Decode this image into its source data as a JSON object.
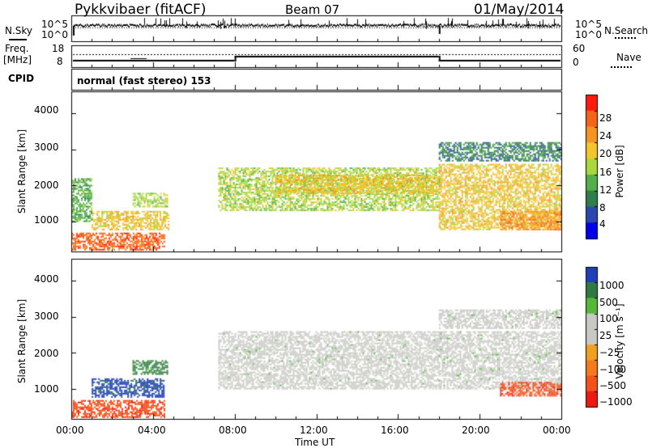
{
  "header": {
    "station": "Pykkvibaer (fitACF)",
    "beam": "Beam 07",
    "date": "01/May/2014"
  },
  "panels": {
    "nsky": {
      "left_label": "N.Sky",
      "right_label": "N.Search",
      "left_ticks": [
        "10^5",
        "10^0"
      ],
      "right_ticks": [
        "10^5",
        "10^0"
      ]
    },
    "freq": {
      "left_label_1": "Freq.",
      "left_label_2": "[MHz]",
      "left_ticks": [
        "18",
        "8"
      ],
      "right_label": "Nave",
      "right_ticks": [
        "60",
        "0"
      ]
    },
    "cpid": {
      "label": "CPID",
      "value": "normal (fast stereo) 153"
    }
  },
  "chart_data": [
    {
      "type": "heatmap",
      "name": "Power",
      "ylabel": "Slant Range [km]",
      "xlabel": "Time UT",
      "xlim_hours": [
        0,
        24
      ],
      "ylim_km": [
        180,
        4600
      ],
      "x_tick_labels": [
        "00:00",
        "04:00",
        "08:00",
        "12:00",
        "16:00",
        "20:00",
        "00:00"
      ],
      "y_tick_labels": [
        "1000",
        "2000",
        "3000",
        "4000"
      ],
      "colorbar": {
        "label": "Power [dB]",
        "tick_labels": [
          "28",
          "24",
          "20",
          "16",
          "12",
          "8",
          "4"
        ],
        "colors": [
          "#0000ee",
          "#2a48b0",
          "#2f7f4a",
          "#52b04a",
          "#a8d83c",
          "#f3c52c",
          "#f59423",
          "#f66418",
          "#ff1a0c"
        ]
      },
      "echo_regions": [
        {
          "t": [
            0.0,
            4.6
          ],
          "range": [
            250,
            700
          ],
          "value": "28"
        },
        {
          "t": [
            1.0,
            4.8
          ],
          "range": [
            800,
            1300
          ],
          "value": "20"
        },
        {
          "t": [
            0.0,
            1.0
          ],
          "range": [
            1000,
            2200
          ],
          "value": "12"
        },
        {
          "t": [
            3.0,
            4.7
          ],
          "range": [
            1400,
            1800
          ],
          "value": "16"
        },
        {
          "t": [
            7.2,
            18.0
          ],
          "range": [
            1300,
            2500
          ],
          "value": "16"
        },
        {
          "t": [
            10.0,
            18.0
          ],
          "range": [
            1800,
            2300
          ],
          "value": "20"
        },
        {
          "t": [
            18.0,
            24.0
          ],
          "range": [
            800,
            2600
          ],
          "value": "20"
        },
        {
          "t": [
            21.0,
            24.0
          ],
          "range": [
            800,
            1300
          ],
          "value": "24"
        },
        {
          "t": [
            18.0,
            24.0
          ],
          "range": [
            2700,
            3200
          ],
          "value": "8"
        }
      ]
    },
    {
      "type": "heatmap",
      "name": "Velocity",
      "ylabel": "Slant Range [km]",
      "xlabel": "Time UT",
      "xlim_hours": [
        0,
        24
      ],
      "ylim_km": [
        180,
        4600
      ],
      "x_tick_labels": [
        "00:00",
        "04:00",
        "08:00",
        "12:00",
        "16:00",
        "20:00",
        "00:00"
      ],
      "y_tick_labels": [
        "1000",
        "2000",
        "3000",
        "4000"
      ],
      "colorbar": {
        "label": "Velocity [m s⁻¹]",
        "tick_labels": [
          "1000",
          "500",
          "100",
          "25",
          "−25",
          "−100",
          "−500",
          "−1000"
        ],
        "colors": [
          "#1f3fb8",
          "#2e7a40",
          "#56b83a",
          "#c8c8c4",
          "#c8c8c4",
          "#f0a020",
          "#f47a1c",
          "#f4521a",
          "#ee1a10"
        ]
      },
      "echo_regions": [
        {
          "t": [
            0.0,
            4.6
          ],
          "range": [
            250,
            700
          ],
          "value": "-500"
        },
        {
          "t": [
            1.0,
            4.5
          ],
          "range": [
            800,
            1300
          ],
          "value": "1000"
        },
        {
          "t": [
            3.0,
            4.7
          ],
          "range": [
            1400,
            1800
          ],
          "value": "500"
        },
        {
          "t": [
            7.2,
            24.0
          ],
          "range": [
            1000,
            2600
          ],
          "value": "0"
        },
        {
          "t": [
            21.0,
            24.0
          ],
          "range": [
            800,
            1200
          ],
          "value": "-500"
        },
        {
          "t": [
            18.0,
            24.0
          ],
          "range": [
            2700,
            3200
          ],
          "value": "0"
        }
      ]
    }
  ]
}
